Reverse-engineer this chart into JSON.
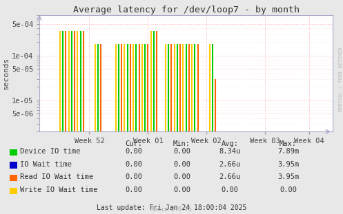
{
  "title": "Average latency for /dev/loop7 - by month",
  "ylabel": "seconds",
  "background_color": "#e8e8e8",
  "plot_bg_color": "#ffffff",
  "grid_color": "#ffaaaa",
  "ylim_min": 2e-06,
  "ylim_max": 0.0008,
  "yticks": [
    5e-06,
    1e-05,
    5e-05,
    0.0001,
    0.0005
  ],
  "ytick_labels": [
    "5e-06",
    "1e-05",
    "5e-05",
    "1e-04",
    "5e-04"
  ],
  "x_week_labels": [
    "Week 52",
    "Week 01",
    "Week 02",
    "Week 03",
    "Week 04"
  ],
  "x_range": [
    0,
    100
  ],
  "week_centers": [
    17,
    37,
    57,
    77,
    92
  ],
  "spikes_green": [
    [
      8,
      0.00035
    ],
    [
      11,
      0.00035
    ],
    [
      14,
      0.00035
    ],
    [
      20,
      0.00018
    ],
    [
      27,
      0.00018
    ],
    [
      30,
      0.00018
    ],
    [
      33,
      0.00018
    ],
    [
      36,
      0.00018
    ],
    [
      39,
      0.00035
    ],
    [
      44,
      0.00018
    ],
    [
      47,
      0.00018
    ],
    [
      50,
      0.00018
    ],
    [
      53,
      0.00018
    ],
    [
      59,
      0.00018
    ]
  ],
  "spikes_orange": [
    [
      9,
      0.00035
    ],
    [
      12,
      0.00035
    ],
    [
      15,
      0.00035
    ],
    [
      21,
      0.00018
    ],
    [
      28,
      0.00018
    ],
    [
      31,
      0.00018
    ],
    [
      34,
      0.00018
    ],
    [
      37,
      0.00018
    ],
    [
      40,
      0.00035
    ],
    [
      45,
      0.00018
    ],
    [
      48,
      0.00018
    ],
    [
      51,
      0.00018
    ],
    [
      54,
      0.00018
    ],
    [
      60,
      3e-05
    ]
  ],
  "spikes_yellow": [
    [
      7,
      0.00035
    ],
    [
      10,
      0.00035
    ],
    [
      13,
      0.00035
    ],
    [
      19,
      0.00018
    ],
    [
      26,
      0.00018
    ],
    [
      29,
      0.00018
    ],
    [
      32,
      0.00018
    ],
    [
      35,
      0.00018
    ],
    [
      38,
      0.00035
    ],
    [
      43,
      0.00018
    ],
    [
      46,
      0.00018
    ],
    [
      49,
      0.00018
    ],
    [
      52,
      0.00018
    ],
    [
      58,
      0.00018
    ]
  ],
  "color_green": "#00cc00",
  "color_blue": "#0000cc",
  "color_orange": "#ff6600",
  "color_yellow": "#ffcc00",
  "legend_entries": [
    {
      "label": "Device IO time",
      "color": "#00cc00"
    },
    {
      "label": "IO Wait time",
      "color": "#0000cc"
    },
    {
      "label": "Read IO Wait time",
      "color": "#ff6600"
    },
    {
      "label": "Write IO Wait time",
      "color": "#ffcc00"
    }
  ],
  "table_headers": [
    "Cur:",
    "Min:",
    "Avg:",
    "Max:"
  ],
  "table_rows": [
    [
      "0.00",
      "0.00",
      "8.34u",
      "7.89m"
    ],
    [
      "0.00",
      "0.00",
      "2.66u",
      "3.95m"
    ],
    [
      "0.00",
      "0.00",
      "2.66u",
      "3.95m"
    ],
    [
      "0.00",
      "0.00",
      "0.00",
      "0.00"
    ]
  ],
  "footer": "Last update: Fri Jan 24 18:00:04 2025",
  "munin_label": "Munin 2.0.75",
  "rrd_label": "RRDTOOL / TOBI OETIKER"
}
